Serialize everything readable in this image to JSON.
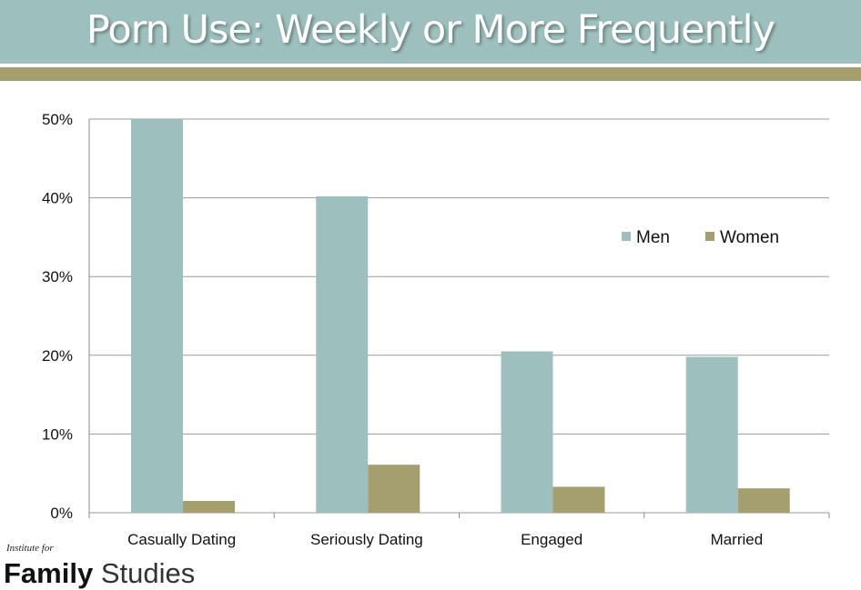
{
  "header": {
    "title": "Porn Use: Weekly or More Frequently"
  },
  "colors": {
    "header_bg": "#9dc0bf",
    "stripe": "#a59f70",
    "men": "#9dc0bf",
    "women": "#a59f70"
  },
  "logo": {
    "line1": "Institute for",
    "line2_bold": "Family",
    "line2_light": "Studies"
  },
  "chart_data": {
    "type": "bar",
    "categories": [
      "Casually Dating",
      "Seriously Dating",
      "Engaged",
      "Married"
    ],
    "series": [
      {
        "name": "Men",
        "values": [
          50,
          40.2,
          20.5,
          19.8
        ],
        "color": "#9dc0bf"
      },
      {
        "name": "Women",
        "values": [
          1.5,
          6.1,
          3.3,
          3.1
        ],
        "color": "#a59f70"
      }
    ],
    "yticks": [
      "0%",
      "10%",
      "20%",
      "30%",
      "40%",
      "50%"
    ],
    "ylim": [
      0,
      50
    ],
    "grid": true,
    "legend": "right"
  }
}
